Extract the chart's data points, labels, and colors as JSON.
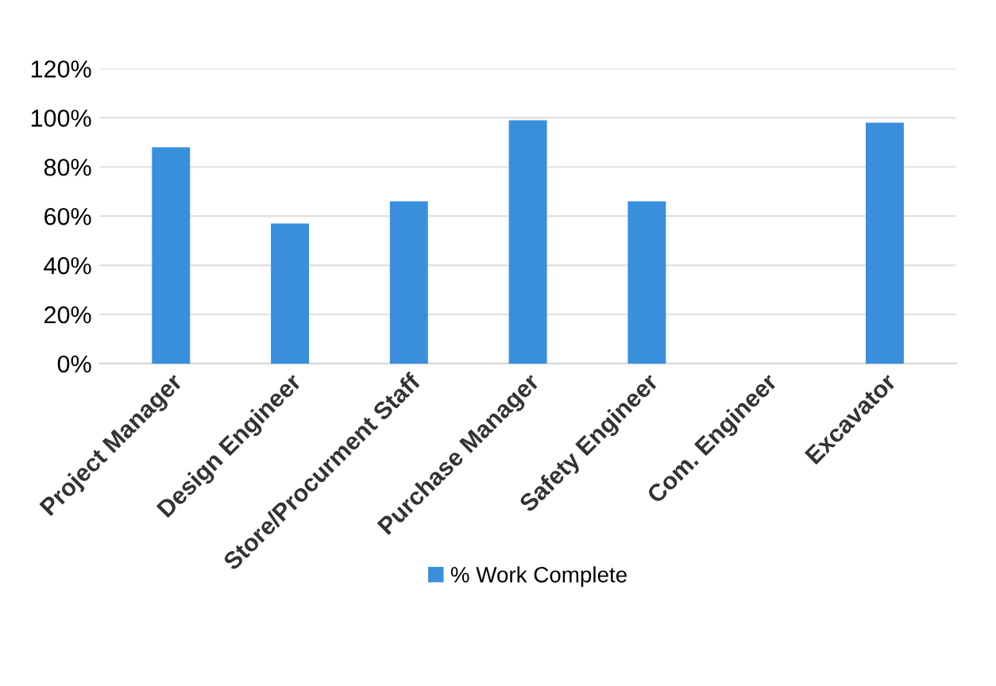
{
  "chart_data": {
    "type": "bar",
    "categories": [
      "Project Manager",
      "Design Engineer",
      "Store/Procurment Staff",
      "Purchase Manager",
      "Safety Engineer",
      "Com. Engineer",
      "Excavator"
    ],
    "series": [
      {
        "name": "% Work Complete",
        "color": "#3a8fdc",
        "values": [
          88,
          57,
          66,
          99,
          66,
          0,
          98
        ]
      }
    ],
    "ylim": [
      0,
      120
    ],
    "yticks": [
      {
        "value": 0,
        "label": "0%"
      },
      {
        "value": 20,
        "label": "20%"
      },
      {
        "value": 40,
        "label": "40%"
      },
      {
        "value": 60,
        "label": "60%"
      },
      {
        "value": 80,
        "label": "80%"
      },
      {
        "value": 100,
        "label": "100%"
      },
      {
        "value": 120,
        "label": "120%"
      }
    ],
    "grid": "y",
    "legend": "bottom"
  }
}
